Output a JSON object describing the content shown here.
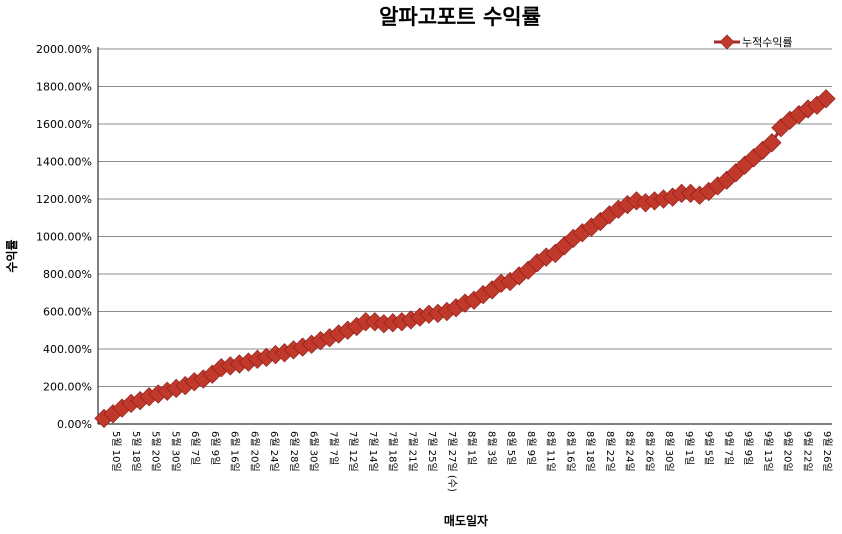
{
  "chart_data": {
    "type": "line",
    "title": "알파고포트 수익률",
    "xlabel": "매도일자",
    "ylabel": "수익률",
    "ylim": [
      0,
      2000
    ],
    "y_ticks": [
      "0.00%",
      "200.00%",
      "400.00%",
      "600.00%",
      "800.00%",
      "1000.00%",
      "1200.00%",
      "1400.00%",
      "1600.00%",
      "1800.00%",
      "2000.00%"
    ],
    "grid": true,
    "legend_position": "top-right",
    "series_color": "#c0392b",
    "x_tick_labels": [
      "5월 10일",
      "5월 18일",
      "5월 20일",
      "5월 30일",
      "6월 7일",
      "6월 9일",
      "6월 16일",
      "6월 20일",
      "6월 24일",
      "6월 28일",
      "6월 30일",
      "7월 7일",
      "7월 12일",
      "7월 14일",
      "7월 18일",
      "7월 21일",
      "7월 25일",
      "7월 27일 (수)",
      "8월 1일",
      "8월 3일",
      "8월 5일",
      "8월 9일",
      "8월 11일",
      "8월 16일",
      "8월 18일",
      "8월 22일",
      "8월 24일",
      "8월 26일",
      "8월 30일",
      "9월 1일",
      "9월 5일",
      "9월 7일",
      "9월 9일",
      "9월 13일",
      "9월 20일",
      "9월 22일",
      "9월 26일"
    ],
    "series": [
      {
        "name": "누적수익률",
        "values": [
          30,
          55,
          85,
          110,
          125,
          145,
          160,
          175,
          190,
          205,
          225,
          240,
          265,
          300,
          310,
          320,
          330,
          345,
          355,
          370,
          380,
          395,
          410,
          425,
          445,
          460,
          480,
          500,
          520,
          545,
          545,
          535,
          540,
          545,
          555,
          570,
          585,
          590,
          600,
          620,
          645,
          660,
          690,
          715,
          750,
          760,
          790,
          820,
          860,
          890,
          910,
          950,
          990,
          1020,
          1050,
          1080,
          1115,
          1145,
          1170,
          1190,
          1180,
          1190,
          1200,
          1210,
          1230,
          1230,
          1220,
          1240,
          1270,
          1300,
          1340,
          1380,
          1420,
          1460,
          1500,
          1580,
          1620,
          1650,
          1680,
          1700,
          1735
        ]
      }
    ]
  }
}
